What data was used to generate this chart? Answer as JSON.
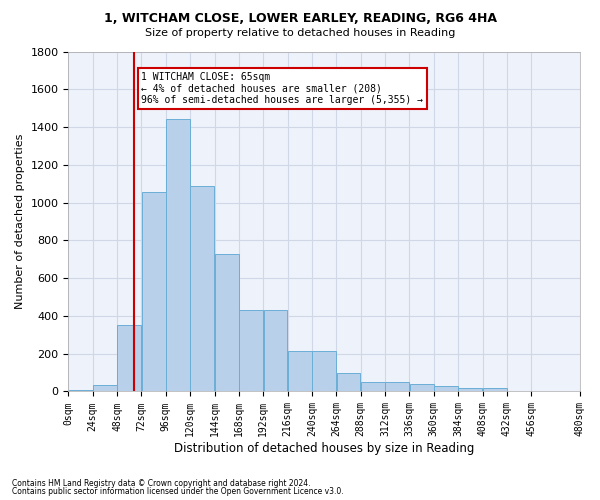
{
  "title1": "1, WITCHAM CLOSE, LOWER EARLEY, READING, RG6 4HA",
  "title2": "Size of property relative to detached houses in Reading",
  "xlabel": "Distribution of detached houses by size in Reading",
  "ylabel": "Number of detached properties",
  "footnote1": "Contains HM Land Registry data © Crown copyright and database right 2024.",
  "footnote2": "Contains public sector information licensed under the Open Government Licence v3.0.",
  "annotation_title": "1 WITCHAM CLOSE: 65sqm",
  "annotation_line1": "← 4% of detached houses are smaller (208)",
  "annotation_line2": "96% of semi-detached houses are larger (5,355) →",
  "property_size": 65,
  "bar_values": [
    10,
    35,
    350,
    1055,
    1440,
    1090,
    730,
    430,
    430,
    215,
    215,
    100,
    50,
    50,
    40,
    30,
    20,
    20,
    5,
    5
  ],
  "bin_starts": [
    0,
    24,
    48,
    72,
    96,
    120,
    144,
    168,
    192,
    216,
    240,
    264,
    288,
    312,
    336,
    360,
    384,
    408,
    432,
    456
  ],
  "bin_width": 24,
  "x_max": 480,
  "bar_color": "#b8d0ea",
  "bar_edge_color": "#6aaed6",
  "vline_color": "#cc0000",
  "annotation_box_color": "#cc0000",
  "grid_color": "#d0d8e8",
  "background_color": "#eef2fa",
  "ylim": [
    0,
    1800
  ],
  "yticks": [
    0,
    200,
    400,
    600,
    800,
    1000,
    1200,
    1400,
    1600,
    1800
  ],
  "xtick_labels": [
    "0sqm",
    "24sqm",
    "48sqm",
    "72sqm",
    "96sqm",
    "120sqm",
    "144sqm",
    "168sqm",
    "192sqm",
    "216sqm",
    "240sqm",
    "264sqm",
    "288sqm",
    "312sqm",
    "336sqm",
    "360sqm",
    "384sqm",
    "408sqm",
    "432sqm",
    "456sqm",
    "480sqm"
  ]
}
